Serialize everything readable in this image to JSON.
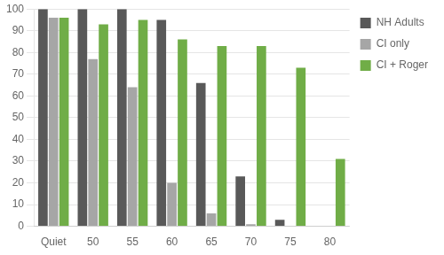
{
  "chart_data": {
    "type": "bar",
    "categories": [
      "Quiet",
      "50",
      "55",
      "60",
      "65",
      "70",
      "75",
      "80"
    ],
    "series": [
      {
        "name": "NH Adults",
        "color": "#595959",
        "values": [
          100,
          100,
          100,
          95,
          66,
          23,
          3,
          0
        ]
      },
      {
        "name": "CI only",
        "color": "#a6a6a6",
        "values": [
          96,
          77,
          64,
          20,
          6,
          1,
          0,
          0
        ]
      },
      {
        "name": "CI + Roger",
        "color": "#70ad47",
        "values": [
          96,
          93,
          95,
          86,
          83,
          83,
          73,
          31
        ]
      }
    ],
    "ylim": [
      0,
      100
    ],
    "yticks": [
      0,
      10,
      20,
      30,
      40,
      50,
      60,
      70,
      80,
      90,
      100
    ],
    "grid": true,
    "legend": "right"
  }
}
